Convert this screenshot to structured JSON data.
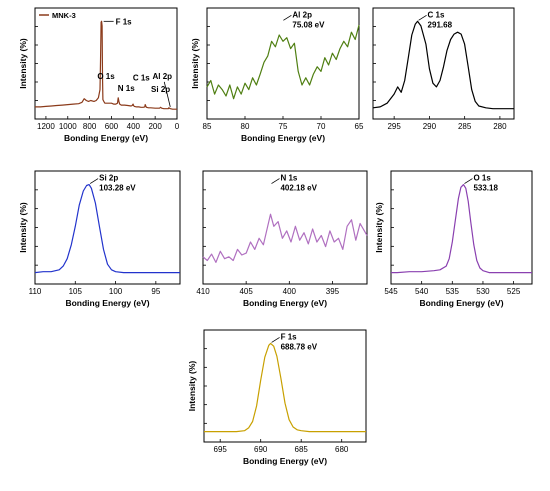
{
  "figure": {
    "colors": {
      "survey": "#8b3a1a",
      "al2p": "#4f7f12",
      "c1s": "#000000",
      "si2p": "#2233cc",
      "n1s": "#b070c0",
      "o1s": "#8a40b0",
      "f1s": "#c8a000"
    }
  },
  "chart_data": [
    {
      "id": "survey",
      "type": "line",
      "legend": [
        "MNK-3"
      ],
      "xlabel": "Bonding Energy (eV)",
      "ylabel": "Intensity (%)",
      "xlim": [
        1300,
        0
      ],
      "xticks": [
        "1200",
        "1000",
        "800",
        "600",
        "400",
        "200",
        "0"
      ],
      "xtick_values": [
        1200,
        1000,
        800,
        600,
        400,
        200,
        0
      ],
      "annotations": [
        {
          "text": "F 1s",
          "x": 690,
          "y": 1.0
        },
        {
          "text": "O 1s",
          "x": 540,
          "y": 0.28
        },
        {
          "text": "N 1s",
          "x": 410,
          "y": 0.17
        },
        {
          "text": "C 1s",
          "x": 290,
          "y": 0.26
        },
        {
          "text": "Si 2p",
          "x": 150,
          "y": 0.16
        },
        {
          "text": "Al 2p",
          "x": 80,
          "y": 0.28
        }
      ],
      "series": [
        {
          "name": "MNK-3",
          "x": [
            1300,
            1250,
            1200,
            1150,
            1100,
            1050,
            1000,
            950,
            900,
            870,
            850,
            830,
            810,
            790,
            760,
            740,
            720,
            705,
            700,
            695,
            690,
            686,
            682,
            678,
            670,
            660,
            640,
            620,
            600,
            580,
            560,
            545,
            538,
            532,
            525,
            510,
            480,
            450,
            420,
            410,
            402,
            398,
            390,
            370,
            350,
            330,
            310,
            295,
            291,
            286,
            280,
            260,
            240,
            200,
            180,
            160,
            150,
            140,
            120,
            100,
            80,
            75,
            60,
            40,
            20,
            0
          ],
          "y": [
            0.06,
            0.06,
            0.065,
            0.07,
            0.075,
            0.08,
            0.085,
            0.09,
            0.095,
            0.11,
            0.15,
            0.13,
            0.12,
            0.13,
            0.12,
            0.13,
            0.16,
            0.25,
            0.55,
            0.99,
            1.0,
            0.95,
            0.4,
            0.14,
            0.12,
            0.1,
            0.1,
            0.1,
            0.1,
            0.09,
            0.09,
            0.1,
            0.16,
            0.12,
            0.09,
            0.08,
            0.08,
            0.075,
            0.07,
            0.075,
            0.09,
            0.075,
            0.065,
            0.06,
            0.06,
            0.055,
            0.055,
            0.06,
            0.085,
            0.07,
            0.055,
            0.05,
            0.05,
            0.045,
            0.045,
            0.045,
            0.055,
            0.045,
            0.04,
            0.04,
            0.04,
            0.05,
            0.04,
            0.035,
            0.035,
            0.035
          ]
        }
      ]
    },
    {
      "id": "al2p",
      "type": "line",
      "xlabel": "Bonding Energy (eV)",
      "ylabel": "Intensity (%)",
      "xlim": [
        85,
        65
      ],
      "xticks": [
        "85",
        "80",
        "75",
        "70",
        "65"
      ],
      "xtick_values": [
        85,
        80,
        75,
        70,
        65
      ],
      "annotations": [
        {
          "text": "Al 2p",
          "x": 75.08,
          "y": 0.95
        },
        {
          "text": "75.08 eV",
          "x": 75.08,
          "y": 0.88
        }
      ],
      "series": [
        {
          "name": "Al 2p",
          "x": [
            85,
            84.5,
            84,
            83.5,
            83,
            82.5,
            82,
            81.5,
            81,
            80.5,
            80,
            79.5,
            79,
            78.5,
            78,
            77.5,
            77,
            76.5,
            76,
            75.5,
            75,
            74.5,
            74,
            73.5,
            73,
            72.5,
            72,
            71.5,
            71,
            70.5,
            70,
            69.5,
            69,
            68.5,
            68,
            67.5,
            67,
            66.5,
            66,
            65.5,
            65
          ],
          "y": [
            0.28,
            0.35,
            0.2,
            0.3,
            0.25,
            0.18,
            0.3,
            0.15,
            0.28,
            0.2,
            0.32,
            0.25,
            0.38,
            0.3,
            0.42,
            0.55,
            0.62,
            0.78,
            0.72,
            0.85,
            0.78,
            0.82,
            0.7,
            0.76,
            0.45,
            0.3,
            0.38,
            0.3,
            0.42,
            0.5,
            0.45,
            0.6,
            0.52,
            0.65,
            0.58,
            0.7,
            0.78,
            0.72,
            0.88,
            0.8,
            0.96
          ]
        }
      ]
    },
    {
      "id": "c1s",
      "type": "line",
      "xlim": [
        298,
        278
      ],
      "xticks": [
        "295",
        "290",
        "285",
        "280"
      ],
      "xtick_values": [
        295,
        290,
        285,
        280
      ],
      "annotations": [
        {
          "text": "C 1s",
          "x": 291.68,
          "y": 1.0
        },
        {
          "text": "291.68",
          "x": 291.68,
          "y": 0.93
        }
      ],
      "series": [
        {
          "name": "C 1s",
          "x": [
            298,
            297,
            296,
            295,
            294.5,
            294,
            293.5,
            293,
            292.5,
            292,
            291.68,
            291.2,
            290.5,
            290,
            289.5,
            289,
            288.5,
            288,
            287.5,
            287,
            286.5,
            286,
            285.5,
            285,
            284.5,
            284,
            283.5,
            283,
            282,
            281,
            280,
            279,
            278
          ],
          "y": [
            0.05,
            0.06,
            0.1,
            0.2,
            0.28,
            0.22,
            0.35,
            0.6,
            0.85,
            0.97,
            1.0,
            0.95,
            0.75,
            0.48,
            0.32,
            0.28,
            0.35,
            0.5,
            0.68,
            0.8,
            0.86,
            0.88,
            0.86,
            0.75,
            0.5,
            0.25,
            0.12,
            0.07,
            0.05,
            0.04,
            0.04,
            0.04,
            0.04
          ]
        }
      ]
    },
    {
      "id": "si2p",
      "type": "line",
      "xlabel": "Bonding Energy (eV)",
      "ylabel": "Intensity (%)",
      "xlim": [
        110,
        92
      ],
      "xticks": [
        "110",
        "105",
        "100",
        "95"
      ],
      "xtick_values": [
        110,
        105,
        100,
        95
      ],
      "annotations": [
        {
          "text": "Si 2p",
          "x": 103.28,
          "y": 1.0
        },
        {
          "text": "103.28 eV",
          "x": 103.28,
          "y": 0.93
        }
      ],
      "series": [
        {
          "name": "Si 2p",
          "x": [
            110,
            109,
            108,
            107,
            106.5,
            106,
            105.5,
            105,
            104.5,
            104,
            103.6,
            103.28,
            103,
            102.5,
            102,
            101.5,
            101,
            100.5,
            100,
            99,
            98,
            97,
            96,
            95,
            94,
            93,
            92
          ],
          "y": [
            0.05,
            0.06,
            0.06,
            0.08,
            0.12,
            0.2,
            0.35,
            0.55,
            0.78,
            0.93,
            0.99,
            1.0,
            0.96,
            0.8,
            0.55,
            0.3,
            0.14,
            0.08,
            0.06,
            0.05,
            0.05,
            0.05,
            0.05,
            0.05,
            0.05,
            0.05,
            0.05
          ]
        }
      ]
    },
    {
      "id": "n1s",
      "type": "line",
      "xlabel": "Bonding Energy (eV)",
      "xlim": [
        410,
        391
      ],
      "xticks": [
        "410",
        "405",
        "400",
        "395"
      ],
      "xtick_values": [
        410,
        405,
        400,
        395
      ],
      "annotations": [
        {
          "text": "N 1s",
          "x": 402.18,
          "y": 0.95
        },
        {
          "text": "402.18 eV",
          "x": 402.18,
          "y": 0.88
        }
      ],
      "series": [
        {
          "name": "N 1s",
          "x": [
            410,
            409.5,
            409,
            408.5,
            408,
            407.5,
            407,
            406.5,
            406,
            405.5,
            405,
            404.5,
            404,
            403.5,
            403,
            402.5,
            402.18,
            401.8,
            401.3,
            400.8,
            400.3,
            399.8,
            399.3,
            398.8,
            398.3,
            397.8,
            397.3,
            396.8,
            396.3,
            395.8,
            395.3,
            394.8,
            394.3,
            393.8,
            393.3,
            392.8,
            392.3,
            391.8,
            391.3,
            391
          ],
          "y": [
            0.22,
            0.18,
            0.25,
            0.16,
            0.28,
            0.2,
            0.22,
            0.18,
            0.3,
            0.24,
            0.26,
            0.38,
            0.3,
            0.42,
            0.35,
            0.55,
            0.68,
            0.55,
            0.6,
            0.42,
            0.5,
            0.38,
            0.55,
            0.4,
            0.48,
            0.36,
            0.52,
            0.38,
            0.45,
            0.33,
            0.5,
            0.38,
            0.42,
            0.3,
            0.55,
            0.62,
            0.4,
            0.58,
            0.5,
            0.45
          ]
        }
      ]
    },
    {
      "id": "o1s",
      "type": "line",
      "xlabel": "Bonding Energy (eV)",
      "ylabel": "Intensity (%)",
      "xlim": [
        545,
        522
      ],
      "xticks": [
        "545",
        "540",
        "535",
        "530",
        "525"
      ],
      "xtick_values": [
        545,
        540,
        535,
        530,
        525
      ],
      "annotations": [
        {
          "text": "O 1s",
          "x": 533.18,
          "y": 1.0
        },
        {
          "text": "533.18",
          "x": 533.18,
          "y": 0.93
        }
      ],
      "series": [
        {
          "name": "O 1s",
          "x": [
            545,
            544,
            542,
            540,
            538,
            537,
            536,
            535.5,
            535,
            534.5,
            534,
            533.6,
            533.18,
            532.8,
            532.4,
            532,
            531.5,
            531,
            530.5,
            530,
            529,
            528,
            526,
            524,
            522
          ],
          "y": [
            0.05,
            0.05,
            0.06,
            0.06,
            0.07,
            0.08,
            0.12,
            0.2,
            0.38,
            0.62,
            0.85,
            0.97,
            1.0,
            0.96,
            0.82,
            0.6,
            0.35,
            0.18,
            0.1,
            0.07,
            0.05,
            0.05,
            0.05,
            0.05,
            0.05
          ]
        }
      ]
    },
    {
      "id": "f1s",
      "type": "line",
      "xlabel": "Bonding Energy (eV)",
      "ylabel": "Intensity (%)",
      "xlim": [
        697,
        677
      ],
      "xticks": [
        "695",
        "690",
        "685",
        "680"
      ],
      "xtick_values": [
        695,
        690,
        685,
        680
      ],
      "annotations": [
        {
          "text": "F 1s",
          "x": 688.78,
          "y": 1.0
        },
        {
          "text": "688.78 eV",
          "x": 688.78,
          "y": 0.93
        }
      ],
      "series": [
        {
          "name": "F 1s",
          "x": [
            697,
            695,
            693,
            692,
            691.5,
            691,
            690.5,
            690,
            689.5,
            689,
            688.78,
            688.4,
            688,
            687.5,
            687,
            686.5,
            686,
            685.5,
            685,
            684,
            683,
            681,
            679,
            677
          ],
          "y": [
            0.04,
            0.04,
            0.04,
            0.05,
            0.08,
            0.15,
            0.32,
            0.6,
            0.85,
            0.98,
            1.0,
            0.97,
            0.86,
            0.62,
            0.35,
            0.17,
            0.09,
            0.06,
            0.05,
            0.04,
            0.04,
            0.04,
            0.04,
            0.04
          ]
        }
      ]
    }
  ]
}
